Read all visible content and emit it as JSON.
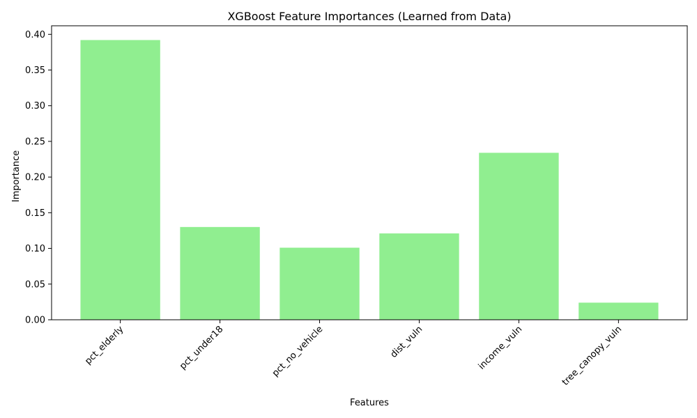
{
  "chart_data": {
    "type": "bar",
    "title": "XGBoost Feature Importances (Learned from Data)",
    "xlabel": "Features",
    "ylabel": "Importance",
    "categories": [
      "pct_elderly",
      "pct_under18",
      "pct_no_vehicle",
      "dist_vuln",
      "income_vuln",
      "tree_canopy_vuln"
    ],
    "values": [
      0.392,
      0.13,
      0.101,
      0.121,
      0.234,
      0.024
    ],
    "ylim": [
      0,
      0.412
    ],
    "yticks": [
      0.0,
      0.05,
      0.1,
      0.15,
      0.2,
      0.25,
      0.3,
      0.35,
      0.4
    ],
    "ytick_labels": [
      "0.00",
      "0.05",
      "0.10",
      "0.15",
      "0.20",
      "0.25",
      "0.30",
      "0.35",
      "0.40"
    ],
    "xtick_rotation_deg": 45,
    "bar_color": "#90ee90",
    "grid": false,
    "legend": "none"
  }
}
